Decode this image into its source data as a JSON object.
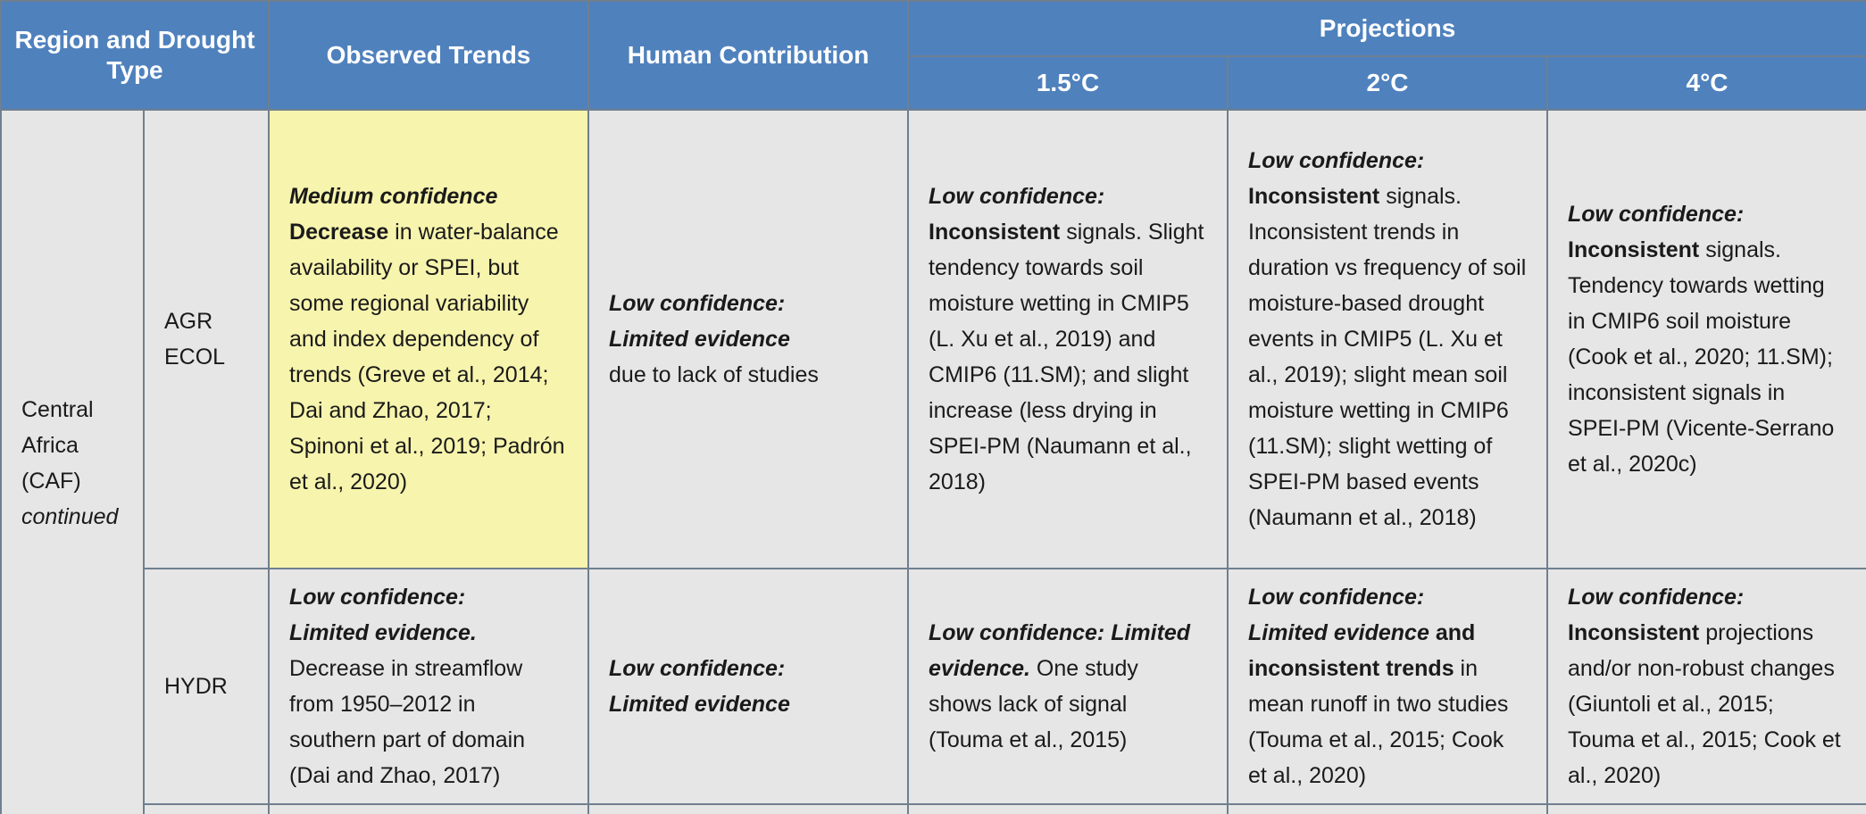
{
  "header": {
    "region": "Region and Drought Type",
    "observed": "Observed Trends",
    "human": "Human Contribution",
    "projections": "Projections",
    "p15": "1.5°C",
    "p2": "2°C",
    "p4": "4°C"
  },
  "region": {
    "line1": "Central",
    "line2": "Africa",
    "line3": "(CAF)",
    "line4": "continued"
  },
  "rows": {
    "agr": {
      "type1": "AGR",
      "type2": "ECOL",
      "observed": {
        "conf": "Medium confidence",
        "bold": "Decrease",
        "text": " in water-balance availability or SPEI, but some regional variability and index dependency of trends (Greve et al., 2014; Dai and Zhao, 2017; Spinoni et al., 2019; Padrón et al., 2020)"
      },
      "human": {
        "conf": "Low confidence:",
        "conf2": "Limited evidence",
        "text": "due to lack of studies"
      },
      "p15": {
        "conf": "Low confidence:",
        "bold": "Inconsistent",
        "text": " signals. Slight tendency towards soil moisture wetting in CMIP5 (L. Xu et al., 2019) and CMIP6 (11.SM); and slight increase (less drying in SPEI-PM (Naumann et al., 2018)"
      },
      "p2": {
        "conf": "Low confidence:",
        "bold": "Inconsistent",
        "text": " signals. Inconsistent trends in duration vs frequency of soil moisture-based drought events in CMIP5 (L. Xu et al., 2019); slight mean soil moisture wetting in CMIP6 (11.SM); slight wetting of SPEI-PM based events (Naumann et al., 2018)"
      },
      "p4": {
        "conf": "Low confidence:",
        "bold": "Inconsistent",
        "text": " signals. Tendency towards wetting in CMIP6 soil moisture (Cook et al., 2020; 11.SM); inconsistent signals in SPEI-PM (Vicente-Serrano et al., 2020c)"
      }
    },
    "hydr": {
      "type1": "HYDR",
      "observed": {
        "conf": "Low confidence:",
        "conf2": "Limited evidence.",
        "text": "Decrease in streamflow from 1950–2012 in southern part of domain (Dai and Zhao, 2017)"
      },
      "human": {
        "conf": "Low confidence:",
        "conf2": "Limited evidence"
      },
      "p15": {
        "conf": "Low confidence: Limited evidence.",
        "text": " One study shows lack of signal (Touma et al., 2015)"
      },
      "p2": {
        "conf": "Low confidence:",
        "conf2": "Limited evidence",
        "and": " and ",
        "bold": "inconsistent trends",
        "text": " in mean runoff in two studies (Touma et al., 2015; Cook et al., 2020)"
      },
      "p4": {
        "conf": "Low confidence:",
        "bold": "Inconsistent",
        "text": " projections and/or non-robust changes (Giuntoli et al., 2015; Touma et al., 2015; Cook et al., 2020)"
      }
    }
  },
  "colors": {
    "header_bg": "#4f81bd",
    "cell_bg": "#e6e6e6",
    "highlight_bg": "#f7f4ad",
    "border": "#6f7f8f"
  }
}
